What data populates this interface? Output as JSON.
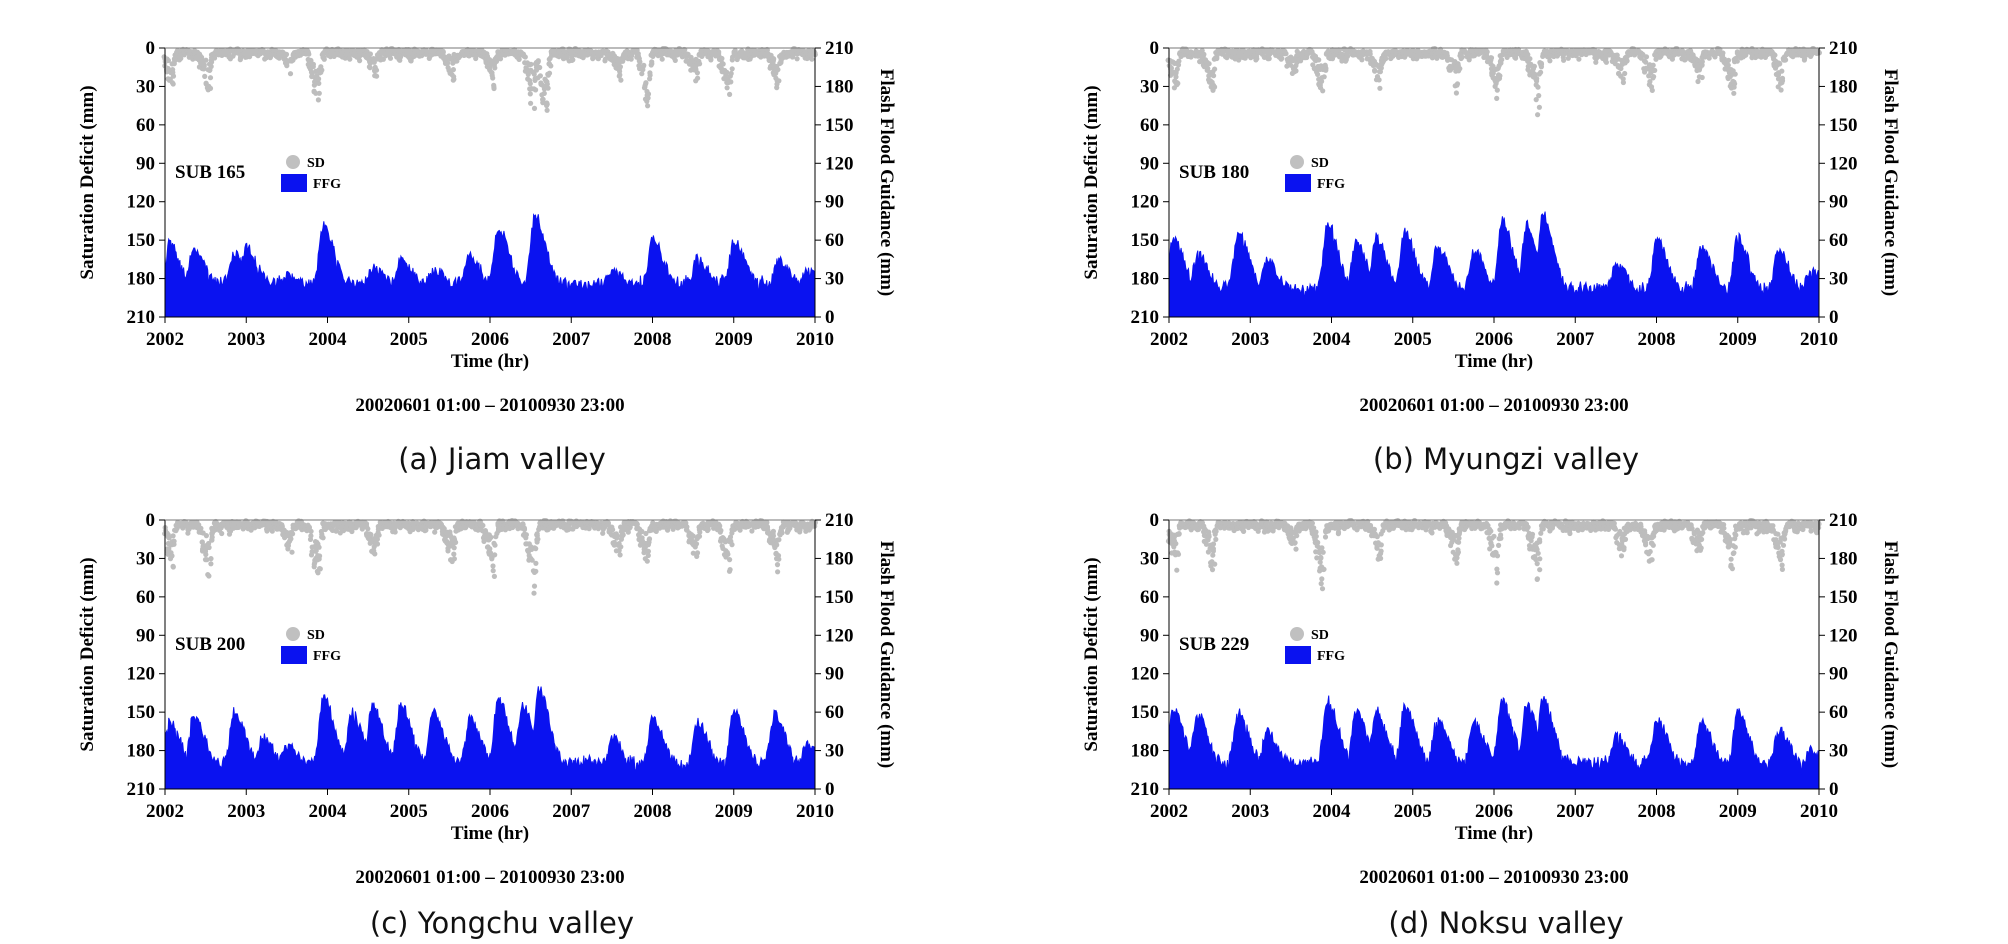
{
  "figure": {
    "panels": [
      {
        "id": "a",
        "caption": "(a) Jiam valley",
        "sub_label": "SUB 165",
        "seed": 165
      },
      {
        "id": "b",
        "caption": "(b) Myungzi valley",
        "sub_label": "SUB 180",
        "seed": 180
      },
      {
        "id": "c",
        "caption": "(c) Yongchu valley",
        "sub_label": "SUB 200",
        "seed": 200
      },
      {
        "id": "d",
        "caption": "(d) Noksu valley",
        "sub_label": "SUB 229",
        "seed": 229
      }
    ]
  },
  "chart_data": {
    "type": "area",
    "title": "",
    "xlabel": "Time (hr)",
    "period_label": "20020601 01:00 – 20100930 23:00",
    "ylabel_left": "Saturation Deficit (mm)",
    "ylabel_right": "Flash Flood Guidance (mm)",
    "x_ticks": [
      "2002",
      "2003",
      "2004",
      "2005",
      "2006",
      "2007",
      "2008",
      "2009",
      "2010"
    ],
    "xlim": [
      2002,
      2010
    ],
    "y_left_ticks": [
      "0",
      "30",
      "60",
      "90",
      "120",
      "150",
      "180",
      "210"
    ],
    "y_left_lim": [
      0,
      210
    ],
    "y_left_inverted": true,
    "y_right_ticks": [
      "0",
      "30",
      "60",
      "90",
      "120",
      "150",
      "180",
      "210"
    ],
    "y_right_lim": [
      0,
      210
    ],
    "legend": [
      {
        "label": "SD",
        "color": "#c0c0c0",
        "marker": "circle"
      },
      {
        "label": "FFG",
        "color": "#0a12f0",
        "marker": "square"
      }
    ],
    "series": [
      {
        "panel": "a",
        "sub": "SUB 165",
        "SD_troughs": [
          [
            2002.1,
            32
          ],
          [
            2002.55,
            38
          ],
          [
            2003.55,
            18
          ],
          [
            2003.9,
            52
          ],
          [
            2004.6,
            20
          ],
          [
            2005.55,
            25
          ],
          [
            2006.05,
            28
          ],
          [
            2006.55,
            55
          ],
          [
            2006.7,
            60
          ],
          [
            2007.6,
            22
          ],
          [
            2007.95,
            45
          ],
          [
            2008.55,
            28
          ],
          [
            2008.95,
            38
          ],
          [
            2009.55,
            30
          ]
        ],
        "FFG_peaks": [
          [
            2002.05,
            57
          ],
          [
            2002.35,
            54
          ],
          [
            2002.85,
            50
          ],
          [
            2003.0,
            54
          ],
          [
            2003.5,
            32
          ],
          [
            2003.95,
            71
          ],
          [
            2004.55,
            38
          ],
          [
            2004.9,
            46
          ],
          [
            2005.3,
            37
          ],
          [
            2005.75,
            48
          ],
          [
            2006.1,
            70
          ],
          [
            2006.55,
            80
          ],
          [
            2007.5,
            36
          ],
          [
            2008.0,
            61
          ],
          [
            2008.55,
            46
          ],
          [
            2009.0,
            59
          ],
          [
            2009.55,
            44
          ],
          [
            2009.9,
            35
          ]
        ],
        "FFG_base": 24
      },
      {
        "panel": "b",
        "sub": "SUB 180",
        "SD_troughs": [
          [
            2002.1,
            35
          ],
          [
            2002.55,
            40
          ],
          [
            2003.55,
            20
          ],
          [
            2003.9,
            45
          ],
          [
            2004.6,
            30
          ],
          [
            2005.55,
            35
          ],
          [
            2006.05,
            40
          ],
          [
            2006.55,
            55
          ],
          [
            2007.6,
            28
          ],
          [
            2007.95,
            35
          ],
          [
            2008.55,
            30
          ],
          [
            2008.95,
            45
          ],
          [
            2009.55,
            38
          ]
        ],
        "FFG_peaks": [
          [
            2002.05,
            62
          ],
          [
            2002.35,
            50
          ],
          [
            2002.85,
            66
          ],
          [
            2003.2,
            45
          ],
          [
            2003.95,
            74
          ],
          [
            2004.3,
            58
          ],
          [
            2004.55,
            62
          ],
          [
            2004.9,
            66
          ],
          [
            2005.3,
            55
          ],
          [
            2005.75,
            52
          ],
          [
            2006.1,
            75
          ],
          [
            2006.4,
            72
          ],
          [
            2006.6,
            80
          ],
          [
            2007.5,
            42
          ],
          [
            2008.0,
            60
          ],
          [
            2008.55,
            55
          ],
          [
            2009.0,
            62
          ],
          [
            2009.5,
            52
          ],
          [
            2009.9,
            38
          ]
        ],
        "FFG_base": 20
      },
      {
        "panel": "c",
        "sub": "SUB 200",
        "SD_troughs": [
          [
            2002.1,
            40
          ],
          [
            2002.55,
            45
          ],
          [
            2003.55,
            25
          ],
          [
            2003.9,
            52
          ],
          [
            2004.6,
            30
          ],
          [
            2005.55,
            35
          ],
          [
            2006.05,
            45
          ],
          [
            2006.55,
            58
          ],
          [
            2007.6,
            30
          ],
          [
            2007.95,
            38
          ],
          [
            2008.55,
            30
          ],
          [
            2008.95,
            45
          ],
          [
            2009.55,
            40
          ]
        ],
        "FFG_peaks": [
          [
            2002.05,
            53
          ],
          [
            2002.35,
            58
          ],
          [
            2002.85,
            60
          ],
          [
            2003.2,
            40
          ],
          [
            2003.5,
            34
          ],
          [
            2003.95,
            72
          ],
          [
            2004.3,
            60
          ],
          [
            2004.55,
            65
          ],
          [
            2004.9,
            66
          ],
          [
            2005.3,
            60
          ],
          [
            2005.75,
            55
          ],
          [
            2006.1,
            70
          ],
          [
            2006.4,
            65
          ],
          [
            2006.6,
            78
          ],
          [
            2007.5,
            40
          ],
          [
            2008.0,
            55
          ],
          [
            2008.55,
            52
          ],
          [
            2009.0,
            60
          ],
          [
            2009.5,
            58
          ],
          [
            2009.9,
            35
          ]
        ],
        "FFG_base": 18
      },
      {
        "panel": "d",
        "sub": "SUB 229",
        "SD_troughs": [
          [
            2002.1,
            40
          ],
          [
            2002.55,
            45
          ],
          [
            2003.55,
            25
          ],
          [
            2003.9,
            55
          ],
          [
            2004.6,
            30
          ],
          [
            2005.55,
            35
          ],
          [
            2006.05,
            48
          ],
          [
            2006.55,
            55
          ],
          [
            2007.6,
            30
          ],
          [
            2007.95,
            38
          ],
          [
            2008.55,
            30
          ],
          [
            2008.95,
            45
          ],
          [
            2009.55,
            40
          ]
        ],
        "FFG_peaks": [
          [
            2002.05,
            62
          ],
          [
            2002.35,
            58
          ],
          [
            2002.85,
            60
          ],
          [
            2003.2,
            45
          ],
          [
            2003.95,
            70
          ],
          [
            2004.3,
            60
          ],
          [
            2004.55,
            62
          ],
          [
            2004.9,
            65
          ],
          [
            2005.3,
            55
          ],
          [
            2005.75,
            52
          ],
          [
            2006.1,
            68
          ],
          [
            2006.4,
            66
          ],
          [
            2006.6,
            70
          ],
          [
            2007.5,
            42
          ],
          [
            2008.0,
            55
          ],
          [
            2008.55,
            52
          ],
          [
            2009.0,
            60
          ],
          [
            2009.5,
            46
          ],
          [
            2009.9,
            30
          ]
        ],
        "FFG_base": 18
      }
    ]
  }
}
